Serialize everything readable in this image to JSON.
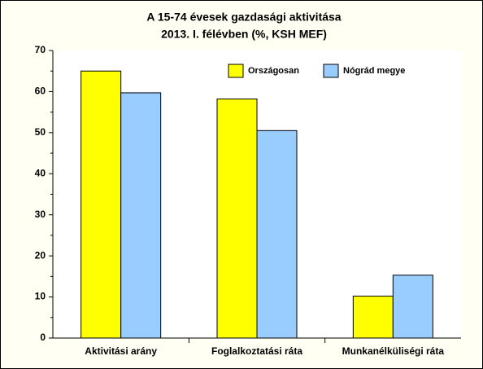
{
  "chart_data": {
    "type": "bar",
    "title": "A 15-74 évesek gazdasági aktivitása",
    "subtitle": "2013. I. félévben (%, KSH MEF)",
    "categories": [
      "Aktivitási arány",
      "Foglalkoztatási ráta",
      "Munkanélküliségi ráta"
    ],
    "series": [
      {
        "name": "Országosan",
        "color": "#ffff00",
        "values": [
          65,
          58.2,
          10.2
        ]
      },
      {
        "name": "Nógrád megye",
        "color": "#99ccff",
        "values": [
          59.7,
          50.5,
          15.3
        ]
      }
    ],
    "ylim": [
      0,
      70
    ],
    "yticks": [
      0,
      10,
      20,
      30,
      40,
      50,
      60,
      70
    ],
    "legend": "top-right"
  }
}
